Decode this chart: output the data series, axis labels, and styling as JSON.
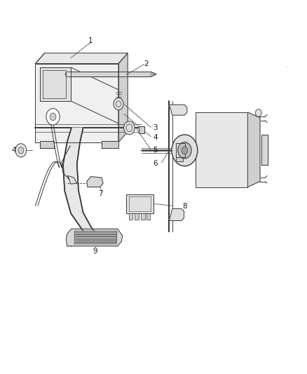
{
  "bg_color": "#ffffff",
  "line_color": "#3a3a3a",
  "fig_width": 4.39,
  "fig_height": 5.33,
  "dpi": 100,
  "label_positions": {
    "1": [
      0.295,
      0.887,
      0.22,
      0.845
    ],
    "2": [
      0.485,
      0.828,
      0.49,
      0.8
    ],
    "3": [
      0.535,
      0.66,
      0.495,
      0.655
    ],
    "4r": [
      0.535,
      0.63,
      0.495,
      0.625
    ],
    "4l": [
      0.055,
      0.598,
      0.075,
      0.598
    ],
    "5": [
      0.535,
      0.598,
      0.495,
      0.593
    ],
    "6": [
      0.535,
      0.56,
      0.495,
      0.555
    ],
    "7": [
      0.345,
      0.49,
      0.335,
      0.462
    ],
    "8": [
      0.595,
      0.443,
      0.635,
      0.443
    ],
    "9": [
      0.32,
      0.335,
      0.32,
      0.3
    ]
  }
}
